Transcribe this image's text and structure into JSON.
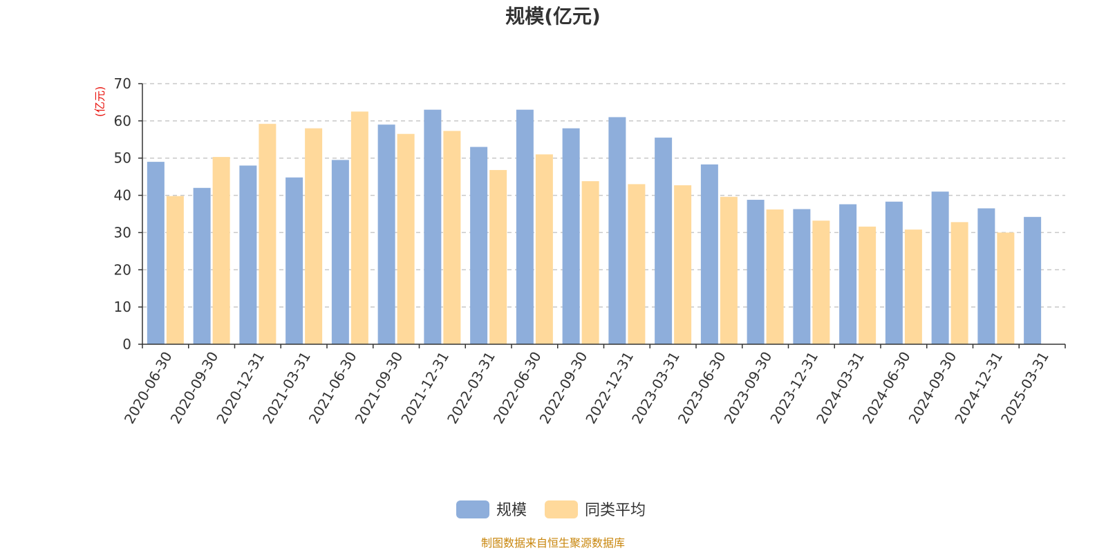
{
  "chart_data": {
    "type": "bar",
    "title": "规模(亿元)",
    "ylabel": "(亿元)",
    "ylim": [
      0,
      70
    ],
    "yticks": [
      0,
      10,
      20,
      30,
      40,
      50,
      60,
      70
    ],
    "grid": true,
    "legend_position": "bottom",
    "categories": [
      "2020-06-30",
      "2020-09-30",
      "2020-12-31",
      "2021-03-31",
      "2021-06-30",
      "2021-09-30",
      "2021-12-31",
      "2022-03-31",
      "2022-06-30",
      "2022-09-30",
      "2022-12-31",
      "2023-03-31",
      "2023-06-30",
      "2023-09-30",
      "2023-12-31",
      "2024-03-31",
      "2024-06-30",
      "2024-09-30",
      "2024-12-31",
      "2025-03-31"
    ],
    "series": [
      {
        "name": "规模",
        "color": "#8eaedb",
        "values": [
          49.0,
          42.0,
          48.0,
          44.8,
          49.5,
          59.0,
          63.0,
          53.0,
          63.0,
          58.0,
          61.0,
          55.5,
          48.3,
          38.8,
          36.3,
          37.6,
          38.3,
          41.0,
          36.5,
          34.2
        ]
      },
      {
        "name": "同类平均",
        "color": "#ffd99b",
        "values": [
          39.8,
          50.3,
          59.2,
          58.0,
          62.5,
          56.5,
          57.3,
          46.8,
          51.0,
          43.8,
          43.0,
          42.7,
          39.6,
          36.2,
          33.2,
          31.6,
          30.8,
          32.8,
          30.0,
          null
        ]
      }
    ],
    "source": "制图数据来自恒生聚源数据库"
  }
}
